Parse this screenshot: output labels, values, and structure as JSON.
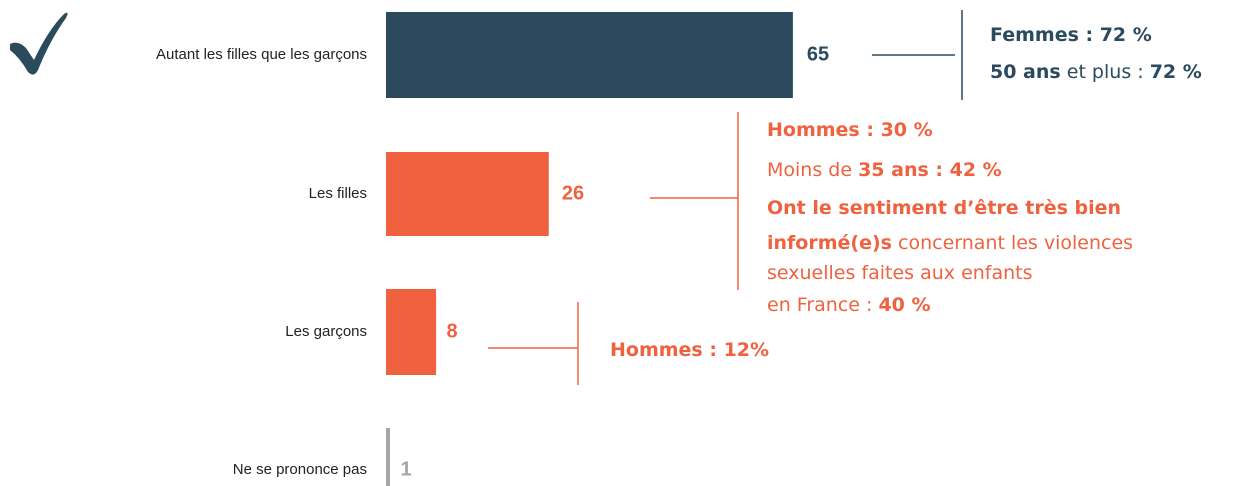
{
  "chart_data": {
    "type": "bar",
    "orientation": "horizontal",
    "categories": [
      "Autant les filles que les garçons",
      "Les filles",
      "Les garçons",
      "Ne se prononce pas"
    ],
    "values": [
      65,
      26,
      8,
      1
    ],
    "colors": [
      "#2b4a5e",
      "#f0623f",
      "#f0623f",
      "#a6a6a6"
    ],
    "annotations": [
      {
        "color": "#2b4a5e",
        "lines": [
          [
            {
              "text": "Femmes : 72 %",
              "bold": true
            }
          ],
          [
            {
              "text": "50 ans",
              "bold": true
            },
            {
              "text": " et plus : ",
              "bold": false
            },
            {
              "text": "72 %",
              "bold": true
            }
          ]
        ]
      },
      {
        "color": "#f0623f",
        "lines": [
          [
            {
              "text": "Hommes : 30 %",
              "bold": true
            }
          ],
          [
            {
              "text": "Moins de ",
              "bold": false
            },
            {
              "text": "35 ans : 42 %",
              "bold": true
            }
          ],
          [
            {
              "text": "Ont le sentiment d’être très bien",
              "bold": true
            }
          ],
          [
            {
              "text": "informé(e)s",
              "bold": true
            },
            {
              "text": " concernant les violences",
              "bold": false
            }
          ],
          [
            {
              "text": "sexuelles faites aux enfants",
              "bold": false
            }
          ],
          [
            {
              "text": "en France : ",
              "bold": false
            },
            {
              "text": "40 %",
              "bold": true
            }
          ]
        ]
      },
      {
        "color": "#f0623f",
        "lines": [
          [
            {
              "text": "Hommes : 12%",
              "bold": true
            }
          ]
        ]
      },
      null
    ]
  }
}
